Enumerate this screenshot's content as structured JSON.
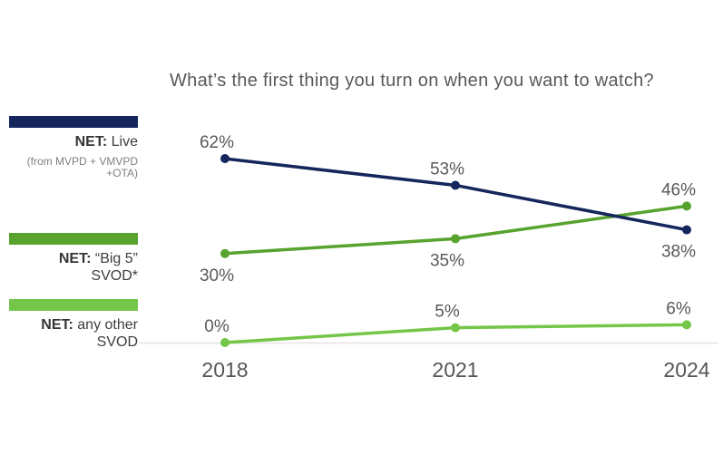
{
  "chart_data": {
    "type": "line",
    "title": "What’s the first thing you turn on when you want to watch?",
    "categories": [
      "2018",
      "2021",
      "2024"
    ],
    "xlabel": "",
    "ylabel": "",
    "unit": "%",
    "ylim": [
      0,
      70
    ],
    "grid": false,
    "legend_position": "left",
    "baseline_axis": "y=0 light gray line",
    "series": [
      {
        "name": "NET: Live (from MVPD + VMVPD + OTA)",
        "color": "#14265B",
        "values": [
          62,
          53,
          38
        ],
        "labels": [
          "62%",
          "53%",
          "38%"
        ],
        "label_pos": [
          "above",
          "above",
          "below"
        ]
      },
      {
        "name": "NET: “Big 5” SVOD*",
        "color": "#57A32E",
        "values": [
          30,
          35,
          46
        ],
        "labels": [
          "30%",
          "35%",
          "46%"
        ],
        "label_pos": [
          "below",
          "below",
          "above"
        ]
      },
      {
        "name": "NET: any other SVOD",
        "color": "#73C648",
        "values": [
          0,
          5,
          6
        ],
        "labels": [
          "0%",
          "5%",
          "6%"
        ],
        "label_pos": [
          "above",
          "above",
          "above"
        ]
      }
    ]
  },
  "legend": {
    "items": [
      {
        "prefix": "NET:",
        "line1": "Live",
        "sub1": "(from MVPD + VMVPD",
        "sub2": "+OTA)",
        "color": "#14265B"
      },
      {
        "prefix": "NET:",
        "line1": "“Big 5”",
        "line2": "SVOD*",
        "color": "#57A32E"
      },
      {
        "prefix": "NET:",
        "line1": "any other",
        "line2": "SVOD",
        "color": "#73C648"
      }
    ]
  },
  "colors": {
    "navy": "#14265B",
    "dark_green": "#57A32E",
    "light_green": "#73C648",
    "text_gray": "#58595b",
    "axis_gray": "#eaeaea"
  }
}
